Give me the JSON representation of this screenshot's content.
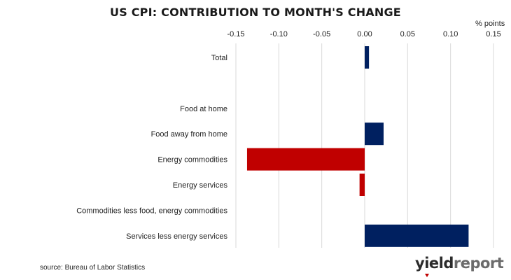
{
  "chart_data": {
    "type": "bar",
    "orientation": "horizontal",
    "title": "US CPI: CONTRIBUTION TO MONTH'S CHANGE",
    "unit_label": "% points",
    "categories": [
      "Total",
      "",
      "Food at home",
      "Food away from home",
      "Energy commodities",
      "Energy services",
      "Commodities less food, energy commodities",
      "Services less energy services"
    ],
    "values": [
      0.005,
      null,
      0.0,
      0.022,
      -0.137,
      -0.006,
      0.0,
      0.121
    ],
    "xlim": [
      -0.15,
      0.15
    ],
    "xticks": [
      -0.15,
      -0.1,
      -0.05,
      0.0,
      0.05,
      0.1,
      0.15
    ],
    "xtick_labels": [
      "-0.15",
      "-0.10",
      "-0.05",
      "0.00",
      "0.05",
      "0.10",
      "0.15"
    ],
    "x_axis_position": "top",
    "grid": true,
    "legend": "none",
    "colors": {
      "positive": "#002060",
      "negative": "#c00000",
      "grid": "#d9d9d9"
    },
    "source": "source: Bureau of Labor Statistics"
  },
  "branding": {
    "logo_part1": "yield",
    "logo_part2": "report"
  }
}
